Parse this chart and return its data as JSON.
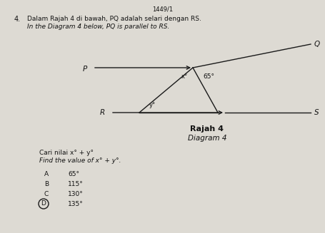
{
  "title_top": "1449/1",
  "question_number": "4.",
  "malay_text": "Dalam Rajah 4 di bawah, PQ adalah selari dengan RS.",
  "english_text": "In the Diagram 4 below, PQ is parallel to RS.",
  "diagram_title_malay": "Rajah 4",
  "diagram_title_english": "Diagram 4",
  "question_malay": "Cari nilai x° + y°",
  "question_english": "Find the value of x° + y°.",
  "options": [
    "A",
    "B",
    "C",
    "D"
  ],
  "option_values": [
    "65°",
    "115°",
    "130°",
    "135°"
  ],
  "correct_option": "D",
  "angle_65": "65°",
  "angle_x": "x°",
  "angle_y": "y°",
  "label_P": "P",
  "label_Q": "Q",
  "label_R": "R",
  "label_S": "S",
  "bg_color": "#dddad3",
  "line_color": "#1a1a1a",
  "text_color": "#111111"
}
